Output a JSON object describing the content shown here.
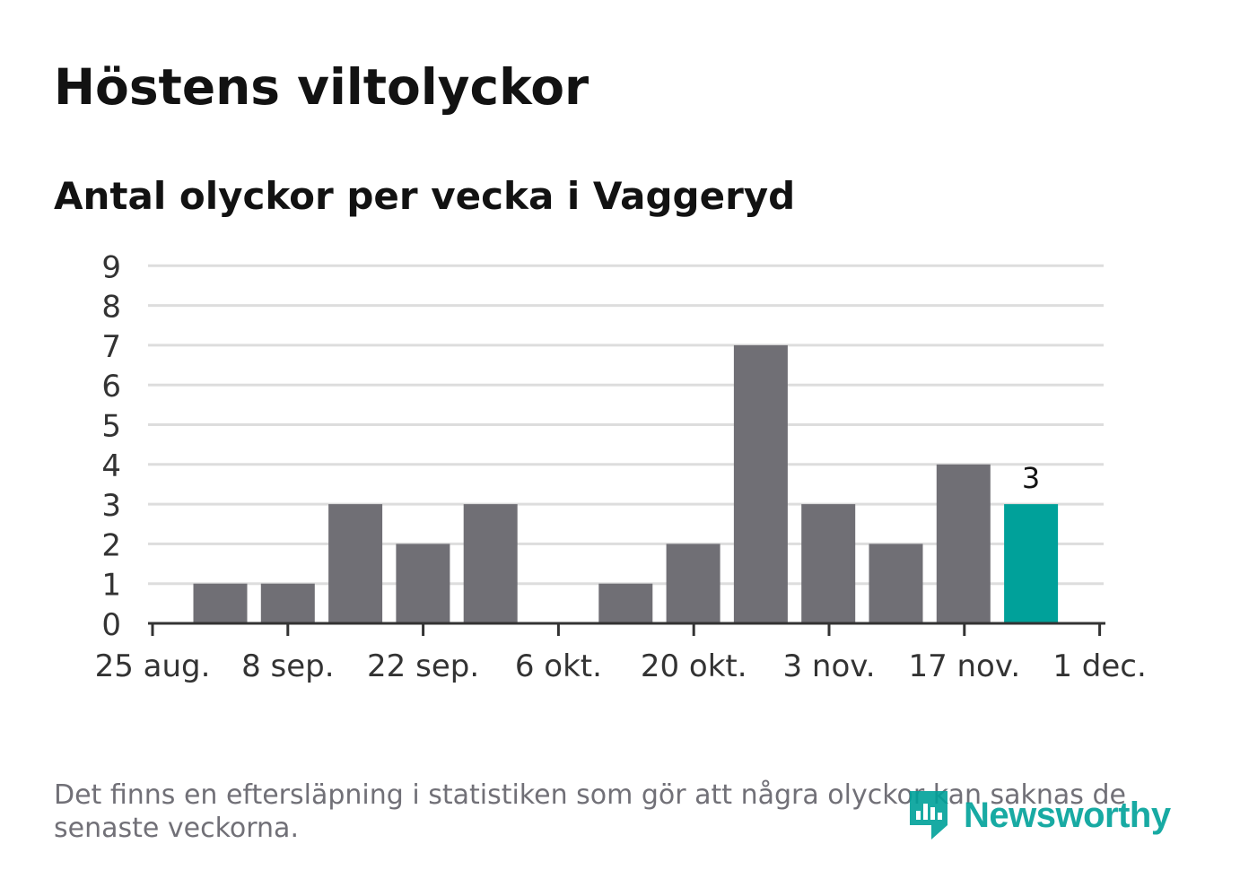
{
  "title": "Höstens viltolyckor",
  "subtitle": "Antal olyckor per vecka i Vaggeryd",
  "note": "Det finns en eftersläpning i statistiken som gör att några olyckor kan saknas de senaste veckorna.",
  "logo": {
    "name": "Newsworthy",
    "icon": "newsworthy-logo-icon"
  },
  "colors": {
    "bar": "#706f75",
    "highlight": "#00a19a",
    "grid": "#dddddd",
    "axis": "#333333"
  },
  "chart_data": {
    "type": "bar",
    "title": "Antal olyckor per vecka i Vaggeryd",
    "xlabel": "",
    "ylabel": "",
    "x_ticks": [
      "25 aug.",
      "8 sep.",
      "22 sep.",
      "6 okt.",
      "20 okt.",
      "3 nov.",
      "17 nov.",
      "1 dec."
    ],
    "y_ticks": [
      0,
      1,
      2,
      3,
      4,
      5,
      6,
      7,
      8,
      9
    ],
    "ylim": [
      0,
      9
    ],
    "grid": true,
    "categories": [
      "1 sep.",
      "8 sep.",
      "15 sep.",
      "22 sep.",
      "29 sep.",
      "6 okt.",
      "13 okt.",
      "20 okt.",
      "27 okt.",
      "3 nov.",
      "10 nov.",
      "17 nov.",
      "24 nov."
    ],
    "values": [
      1,
      1,
      3,
      2,
      3,
      0,
      1,
      2,
      7,
      3,
      2,
      4,
      3
    ],
    "highlight_index": 12,
    "annotations": [
      {
        "index": 12,
        "label": "3"
      }
    ]
  }
}
